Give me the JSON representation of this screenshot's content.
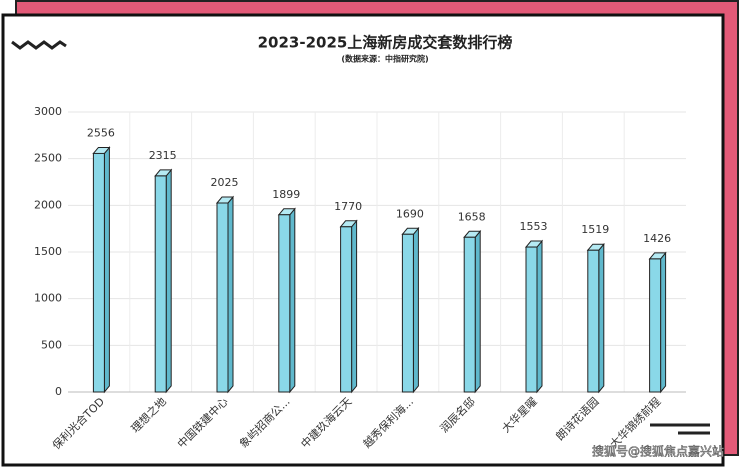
{
  "chart_data": {
    "type": "bar",
    "title": "2023-2025上海新房成交套数排行榜",
    "subtitle": "(数据来源：中指研究院)",
    "categories": [
      "保利光合TOD",
      "理想之地",
      "中国铁建中心",
      "象屿招商公...",
      "中建玖海云天",
      "越秀保利海...",
      "润辰名邸",
      "大华星曜",
      "朗诗花语园",
      "大华锦绣前程"
    ],
    "values": [
      2556,
      2315,
      2025,
      1899,
      1770,
      1690,
      1658,
      1553,
      1519,
      1426
    ],
    "color": "#8ad8e8",
    "ylim": [
      0,
      3000
    ],
    "yticks": [
      0,
      500,
      1000,
      1500,
      2000,
      2500,
      3000
    ],
    "grid": true,
    "watermark": "搜狐号@搜狐焦点嘉兴站"
  }
}
